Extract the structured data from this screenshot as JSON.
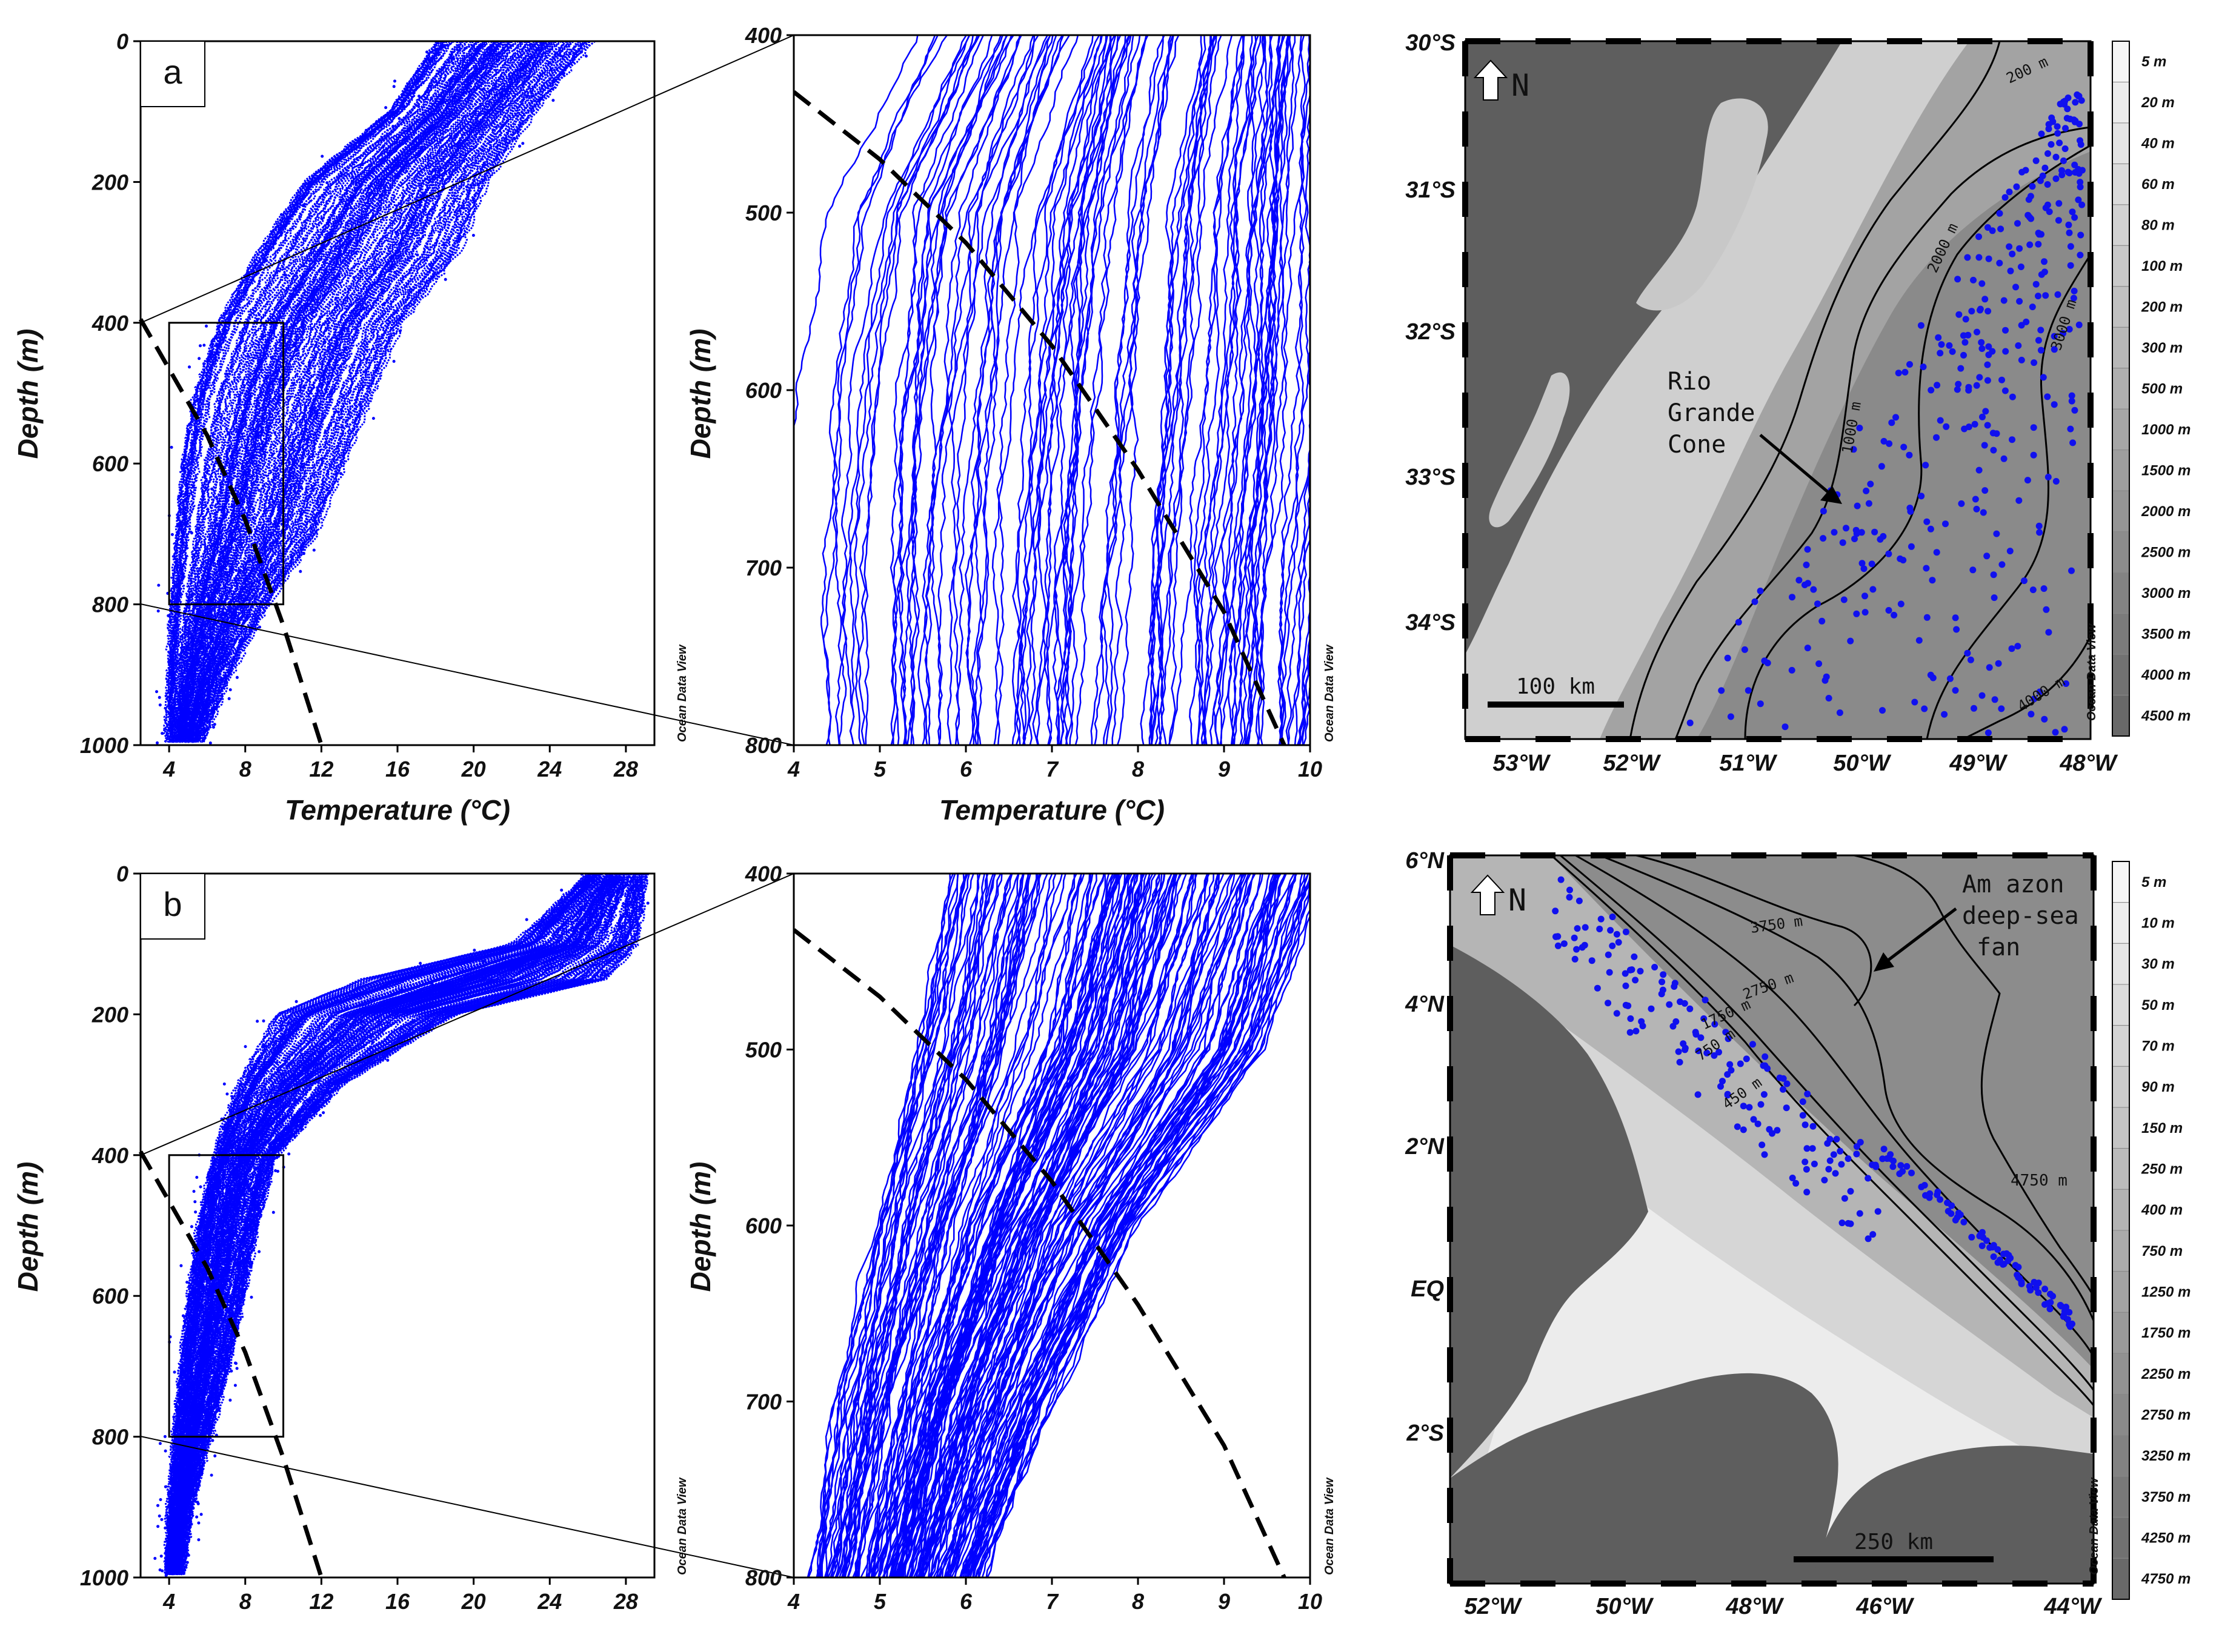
{
  "chart_data": [
    {
      "type": "scatter",
      "panel": "a",
      "xlabel": "Temperature (°C)",
      "ylabel": "Depth (m)",
      "xlim": [
        2.5,
        29.5
      ],
      "ylim": [
        0,
        1000
      ],
      "y_inverted": true,
      "xticks": [
        4,
        8,
        12,
        16,
        20,
        24,
        28
      ],
      "yticks": [
        0,
        200,
        400,
        600,
        800,
        1000
      ],
      "series": [
        {
          "name": "",
          "color": "#0000ff",
          "profile_envelope": {
            "depth": [
              0,
              100,
              200,
              300,
              400,
              500,
              600,
              700,
              800,
              900,
              1000
            ],
            "temp_min": [
              18,
              15.5,
              11,
              8.5,
              6.5,
              5.2,
              4.6,
              4.3,
              4.1,
              4.0,
              4.0
            ],
            "temp_max": [
              26,
              23,
              20.5,
              19,
              16,
              14.5,
              13,
              11.5,
              9,
              7,
              5.5
            ]
          }
        },
        {
          "name": "",
          "type": "line",
          "style": "dashed",
          "color": "#000000",
          "x": [
            2.5,
            6,
            8,
            10,
            12
          ],
          "y": [
            395,
            560,
            680,
            830,
            1000
          ]
        }
      ],
      "inset_box": {
        "x": [
          4,
          10
        ],
        "y": [
          400,
          800
        ]
      },
      "watermark": "Ocean Data View"
    },
    {
      "type": "scatter",
      "panel": "a-zoom",
      "xlabel": "Temperature (°C)",
      "ylabel": "Depth (m)",
      "xlim": [
        4,
        10
      ],
      "ylim": [
        400,
        800
      ],
      "y_inverted": true,
      "xticks": [
        4,
        5,
        6,
        7,
        8,
        9,
        10
      ],
      "yticks": [
        400,
        500,
        600,
        700,
        800
      ],
      "series": [
        {
          "name": "",
          "type": "line",
          "style": "dashed",
          "color": "#000000",
          "x": [
            4,
            5,
            6,
            7,
            8,
            9,
            9.7
          ],
          "y": [
            432,
            470,
            517,
            575,
            645,
            725,
            800
          ]
        }
      ],
      "watermark": "Ocean Data View"
    },
    {
      "type": "scatter",
      "panel": "b",
      "xlabel": "",
      "ylabel": "Depth (m)",
      "xlim": [
        2.5,
        29.5
      ],
      "ylim": [
        0,
        1000
      ],
      "y_inverted": true,
      "xticks": [
        4,
        8,
        12,
        16,
        20,
        24,
        28
      ],
      "yticks": [
        0,
        200,
        400,
        600,
        800,
        1000
      ],
      "series": [
        {
          "name": "",
          "color": "#0000ff",
          "profile_envelope": {
            "depth": [
              0,
              100,
              150,
              200,
              300,
              400,
              500,
              600,
              700,
              800,
              900,
              1000
            ],
            "temp_min": [
              26,
              22,
              14,
              9.5,
              7.5,
              6.3,
              5.5,
              5,
              4.6,
              4.3,
              4.1,
              4.0
            ],
            "temp_max": [
              29,
              28.5,
              27,
              19,
              13,
              9.5,
              8.5,
              7.8,
              7,
              6,
              5,
              4.5
            ]
          }
        },
        {
          "name": "",
          "type": "line",
          "style": "dashed",
          "color": "#000000",
          "x": [
            2.5,
            6,
            8,
            10,
            12
          ],
          "y": [
            395,
            560,
            680,
            830,
            1000
          ]
        }
      ],
      "inset_box": {
        "x": [
          4,
          10
        ],
        "y": [
          400,
          800
        ]
      },
      "watermark": "Ocean Data View"
    },
    {
      "type": "scatter",
      "panel": "b-zoom",
      "xlabel": "",
      "ylabel": "Depth (m)",
      "xlim": [
        4,
        10
      ],
      "ylim": [
        400,
        800
      ],
      "y_inverted": true,
      "xticks": [
        4,
        5,
        6,
        7,
        8,
        9,
        10
      ],
      "yticks": [
        400,
        500,
        600,
        700,
        800
      ],
      "series": [
        {
          "name": "",
          "type": "line",
          "style": "dashed",
          "color": "#000000",
          "x": [
            4,
            5,
            6,
            7,
            8,
            9,
            9.7
          ],
          "y": [
            432,
            470,
            517,
            575,
            645,
            725,
            800
          ]
        }
      ],
      "watermark": "Ocean Data View"
    }
  ],
  "map_a": {
    "north_label": "N",
    "lat_labels": [
      "30°S",
      "31°S",
      "32°S",
      "33°S",
      "34°S"
    ],
    "lon_labels": [
      "53°W",
      "52°W",
      "51°W",
      "50°W",
      "49°W",
      "48°W"
    ],
    "contours": [
      "200 m",
      "1000 m",
      "2000 m",
      "3000 m",
      "4000 m"
    ],
    "annotation": [
      "Rio",
      "Grande",
      "Cone"
    ],
    "scalebar": "100 km",
    "colorbar": [
      "5 m",
      "20 m",
      "40 m",
      "60 m",
      "80 m",
      "100 m",
      "200 m",
      "300 m",
      "500 m",
      "1000 m",
      "1500 m",
      "2000 m",
      "2500 m",
      "3000 m",
      "3500 m",
      "4000 m",
      "4500 m"
    ],
    "watermark": "Ocean Data View"
  },
  "map_b": {
    "north_label": "N",
    "lat_labels": [
      "6°N",
      "4°N",
      "2°N",
      "EQ",
      "2°S"
    ],
    "lon_labels": [
      "52°W",
      "50°W",
      "48°W",
      "46°W",
      "44°W"
    ],
    "contours": [
      "3750 m",
      "2750 m",
      "1750 m",
      "750 m",
      "450 m",
      "4750 m"
    ],
    "annotation": [
      "Am azon",
      "deep-sea",
      "fan"
    ],
    "scalebar": "250 km",
    "colorbar": [
      "5 m",
      "10 m",
      "30 m",
      "50 m",
      "70 m",
      "90 m",
      "150 m",
      "250 m",
      "400 m",
      "750 m",
      "1250 m",
      "1750 m",
      "2250 m",
      "2750 m",
      "3250 m",
      "3750 m",
      "4250 m",
      "4750 m"
    ],
    "watermark": "Ocean Data View"
  },
  "labels": {
    "panel_a": "a",
    "panel_b": "b"
  },
  "colors": {
    "profile": "#0000ff",
    "station": "#1010ee",
    "land": "#5e5e5e",
    "ocean_deep": "#8c8c8c",
    "shelf": "#d9d9d9"
  }
}
